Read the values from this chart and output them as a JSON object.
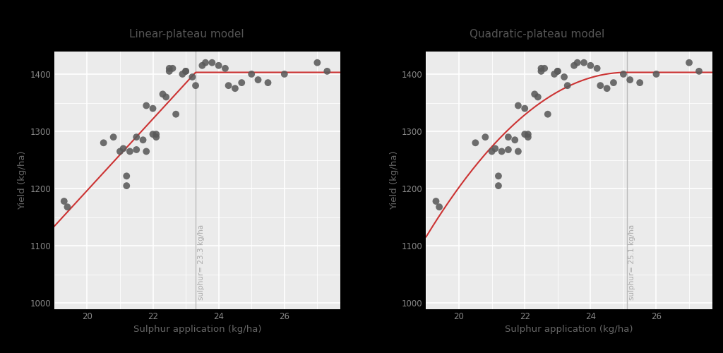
{
  "scatter_x": [
    19.3,
    19.4,
    20.5,
    20.8,
    21.0,
    21.1,
    21.2,
    21.2,
    21.3,
    21.5,
    21.5,
    21.7,
    21.8,
    21.8,
    22.0,
    22.0,
    22.1,
    22.1,
    22.3,
    22.4,
    22.5,
    22.5,
    22.6,
    22.7,
    22.9,
    23.0,
    23.0,
    23.2,
    23.3,
    23.5,
    23.6,
    23.8,
    24.0,
    24.2,
    24.3,
    24.5,
    24.7,
    25.0,
    25.2,
    25.5,
    26.0,
    27.0,
    27.3
  ],
  "scatter_y": [
    1178,
    1168,
    1280,
    1290,
    1265,
    1270,
    1222,
    1205,
    1265,
    1268,
    1290,
    1285,
    1265,
    1345,
    1340,
    1295,
    1295,
    1290,
    1365,
    1360,
    1410,
    1405,
    1410,
    1330,
    1400,
    1405,
    1405,
    1395,
    1380,
    1415,
    1420,
    1420,
    1415,
    1410,
    1380,
    1375,
    1385,
    1400,
    1390,
    1385,
    1400,
    1420,
    1405
  ],
  "breakpoint1": 23.3,
  "breakpoint2": 25.1,
  "plateau": 1403,
  "xlabel": "Sulphur application (kg/ha)",
  "ylabel": "Yield (kg/ha)",
  "title_left": "Linear-plateau model",
  "title_right": "Quadratic-plateau model",
  "vline_label1": "sulphur= 23.3 kg/ha",
  "vline_label2": "sulphur= 25.1 kg/ha",
  "bg_color": "#EBEBEB",
  "scatter_color": "#5A5A5A",
  "line_color": "#CC3333",
  "vline_color": "#BBBBBB",
  "ylim": [
    990,
    1440
  ],
  "xlim": [
    19.0,
    27.7
  ],
  "yticks": [
    1000,
    1100,
    1200,
    1300,
    1400
  ],
  "xticks": [
    20,
    22,
    24,
    26
  ],
  "black_bar_height": 0.06
}
